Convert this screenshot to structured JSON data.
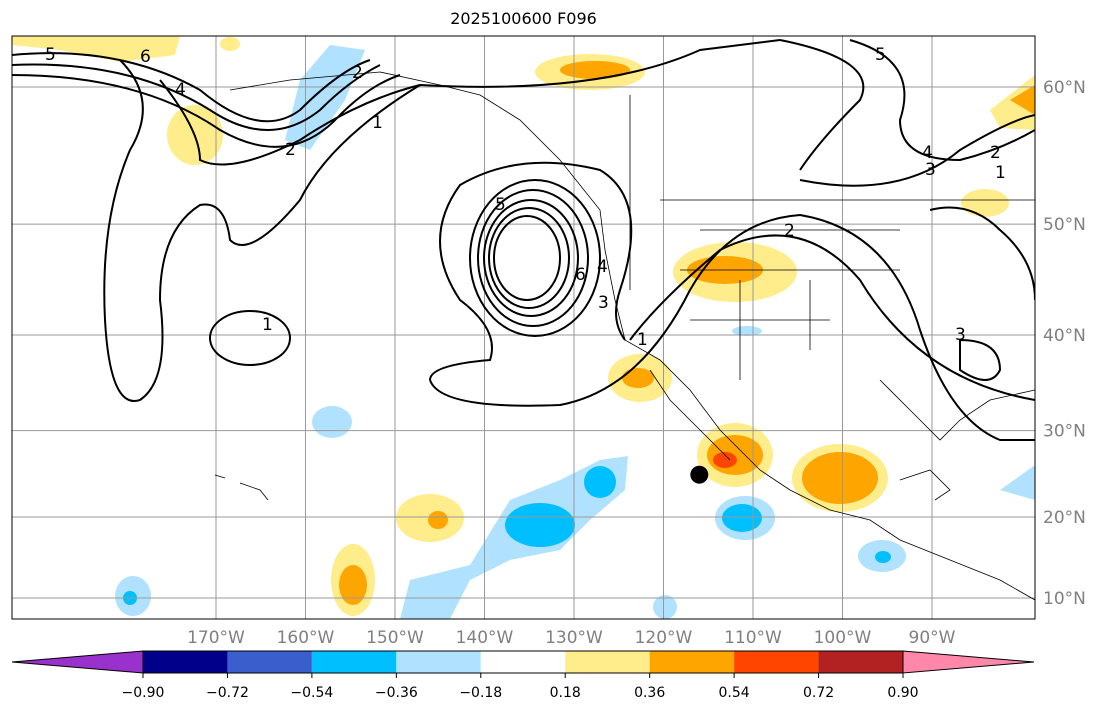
{
  "title": "2025100600 F096",
  "longitude_labels": [
    "170°W",
    "160°W",
    "150°W",
    "140°W",
    "130°W",
    "120°W",
    "110°W",
    "100°W",
    "90°W"
  ],
  "longitudes": [
    -170,
    -160,
    -150,
    -140,
    -130,
    -120,
    -110,
    -100,
    -90
  ],
  "latitude_labels": [
    "60°N",
    "50°N",
    "40°N",
    "30°N",
    "20°N",
    "10°N"
  ],
  "latitudes": [
    60,
    50,
    40,
    30,
    20,
    10
  ],
  "colorbar": {
    "colors": [
      "#9932cc",
      "#00008b",
      "#3a5fcd",
      "#00bfff",
      "#b0e2ff",
      "#ffffff",
      "#ffec8b",
      "#ffa500",
      "#ff4500",
      "#b22222",
      "#ff88aa"
    ],
    "tick_labels": [
      "−0.90",
      "−0.72",
      "−0.54",
      "−0.36",
      "−0.18",
      "0.18",
      "0.36",
      "0.54",
      "0.72",
      "0.90"
    ]
  },
  "contour_labels": [
    "5",
    "6",
    "4",
    "2",
    "1",
    "5",
    "6",
    "4",
    "3",
    "1",
    "2",
    "1",
    "5",
    "4",
    "3",
    "2",
    "1",
    "3",
    "2"
  ],
  "marker": {
    "lon": -116,
    "lat": 25
  }
}
